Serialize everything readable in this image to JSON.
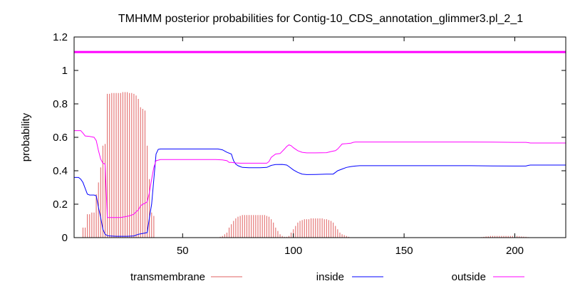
{
  "chart_data": {
    "type": "line",
    "title": "TMHMM posterior probabilities for Contig-10_CDS_annotation_glimmer3.pl_2_1",
    "xlabel": "",
    "ylabel": "probability",
    "xlim": [
      1,
      223
    ],
    "ylim": [
      0,
      1.2
    ],
    "xticks": [
      50,
      100,
      150,
      200
    ],
    "yticks": [
      0,
      0.2,
      0.4,
      0.6,
      0.8,
      1,
      1.2
    ],
    "grid": false,
    "legend_position": "bottom",
    "reference_line": {
      "y": 1.11,
      "color": "#ff00ff"
    },
    "series": [
      {
        "name": "transmembrane",
        "style": "impulses",
        "color": "#e06060",
        "points": [
          [
            1,
            0
          ],
          [
            2,
            0
          ],
          [
            3,
            0
          ],
          [
            4,
            0
          ],
          [
            5,
            0.06
          ],
          [
            6,
            0.06
          ],
          [
            7,
            0.14
          ],
          [
            8,
            0.14
          ],
          [
            9,
            0.15
          ],
          [
            10,
            0.15
          ],
          [
            11,
            0.26
          ],
          [
            12,
            0.33
          ],
          [
            13,
            0.42
          ],
          [
            14,
            0.55
          ],
          [
            15,
            0.56
          ],
          [
            16,
            0.86
          ],
          [
            17,
            0.86
          ],
          [
            18,
            0.865
          ],
          [
            19,
            0.865
          ],
          [
            20,
            0.865
          ],
          [
            21,
            0.865
          ],
          [
            22,
            0.865
          ],
          [
            23,
            0.87
          ],
          [
            24,
            0.87
          ],
          [
            25,
            0.87
          ],
          [
            26,
            0.865
          ],
          [
            27,
            0.865
          ],
          [
            28,
            0.86
          ],
          [
            29,
            0.85
          ],
          [
            30,
            0.83
          ],
          [
            31,
            0.78
          ],
          [
            32,
            0.77
          ],
          [
            33,
            0.76
          ],
          [
            34,
            0.55
          ],
          [
            35,
            0.35
          ],
          [
            36,
            0.15
          ],
          [
            37,
            0.13
          ],
          [
            38,
            0
          ],
          [
            66,
            0
          ],
          [
            67,
            0.005
          ],
          [
            68,
            0.01
          ],
          [
            69,
            0.02
          ],
          [
            70,
            0.03
          ],
          [
            71,
            0.06
          ],
          [
            72,
            0.08
          ],
          [
            73,
            0.1
          ],
          [
            74,
            0.115
          ],
          [
            75,
            0.125
          ],
          [
            76,
            0.13
          ],
          [
            77,
            0.135
          ],
          [
            78,
            0.135
          ],
          [
            79,
            0.135
          ],
          [
            80,
            0.135
          ],
          [
            81,
            0.135
          ],
          [
            82,
            0.135
          ],
          [
            83,
            0.135
          ],
          [
            84,
            0.135
          ],
          [
            85,
            0.135
          ],
          [
            86,
            0.135
          ],
          [
            87,
            0.135
          ],
          [
            88,
            0.13
          ],
          [
            89,
            0.125
          ],
          [
            90,
            0.11
          ],
          [
            91,
            0.09
          ],
          [
            92,
            0.06
          ],
          [
            93,
            0.04
          ],
          [
            94,
            0.02
          ],
          [
            95,
            0.01
          ],
          [
            96,
            0.005
          ],
          [
            97,
            0.005
          ],
          [
            98,
            0.01
          ],
          [
            99,
            0.03
          ],
          [
            100,
            0.05
          ],
          [
            101,
            0.07
          ],
          [
            102,
            0.09
          ],
          [
            103,
            0.1
          ],
          [
            104,
            0.105
          ],
          [
            105,
            0.11
          ],
          [
            106,
            0.11
          ],
          [
            107,
            0.11
          ],
          [
            108,
            0.115
          ],
          [
            109,
            0.115
          ],
          [
            110,
            0.115
          ],
          [
            111,
            0.115
          ],
          [
            112,
            0.115
          ],
          [
            113,
            0.115
          ],
          [
            114,
            0.11
          ],
          [
            115,
            0.11
          ],
          [
            116,
            0.105
          ],
          [
            117,
            0.1
          ],
          [
            118,
            0.09
          ],
          [
            119,
            0.07
          ],
          [
            120,
            0.05
          ],
          [
            121,
            0.03
          ],
          [
            122,
            0.02
          ],
          [
            123,
            0.015
          ],
          [
            124,
            0.01
          ],
          [
            125,
            0.005
          ],
          [
            126,
            0
          ],
          [
            184,
            0
          ],
          [
            185,
            0.003
          ],
          [
            186,
            0.005
          ],
          [
            187,
            0.007
          ],
          [
            188,
            0.008
          ],
          [
            189,
            0.01
          ],
          [
            190,
            0.01
          ],
          [
            191,
            0.01
          ],
          [
            192,
            0.01
          ],
          [
            193,
            0.01
          ],
          [
            194,
            0.01
          ],
          [
            195,
            0.01
          ],
          [
            196,
            0.01
          ],
          [
            197,
            0.01
          ],
          [
            198,
            0.01
          ],
          [
            199,
            0.01
          ],
          [
            200,
            0.01
          ],
          [
            201,
            0.01
          ],
          [
            202,
            0.008
          ],
          [
            203,
            0.007
          ],
          [
            204,
            0.006
          ],
          [
            205,
            0.005
          ],
          [
            206,
            0.003
          ],
          [
            207,
            0
          ]
        ]
      },
      {
        "name": "inside",
        "style": "line",
        "color": "#0000ff",
        "points": [
          [
            1,
            0.36
          ],
          [
            3,
            0.36
          ],
          [
            4,
            0.35
          ],
          [
            5,
            0.33
          ],
          [
            7,
            0.26
          ],
          [
            8,
            0.255
          ],
          [
            9,
            0.255
          ],
          [
            10,
            0.255
          ],
          [
            11,
            0.25
          ],
          [
            12,
            0.18
          ],
          [
            13,
            0.12
          ],
          [
            14,
            0.05
          ],
          [
            15,
            0.02
          ],
          [
            16,
            0.012
          ],
          [
            17,
            0.01
          ],
          [
            20,
            0.008
          ],
          [
            25,
            0.008
          ],
          [
            28,
            0.01
          ],
          [
            30,
            0.02
          ],
          [
            32,
            0.025
          ],
          [
            34,
            0.03
          ],
          [
            35,
            0.12
          ],
          [
            36,
            0.2
          ],
          [
            37,
            0.35
          ],
          [
            38,
            0.5
          ],
          [
            39,
            0.528
          ],
          [
            40,
            0.53
          ],
          [
            50,
            0.53
          ],
          [
            60,
            0.53
          ],
          [
            66,
            0.53
          ],
          [
            68,
            0.525
          ],
          [
            70,
            0.51
          ],
          [
            72,
            0.5
          ],
          [
            73,
            0.46
          ],
          [
            74,
            0.44
          ],
          [
            75,
            0.43
          ],
          [
            76,
            0.425
          ],
          [
            77,
            0.42
          ],
          [
            80,
            0.418
          ],
          [
            85,
            0.418
          ],
          [
            88,
            0.42
          ],
          [
            90,
            0.432
          ],
          [
            92,
            0.437
          ],
          [
            95,
            0.438
          ],
          [
            97,
            0.434
          ],
          [
            98,
            0.425
          ],
          [
            100,
            0.405
          ],
          [
            102,
            0.39
          ],
          [
            104,
            0.38
          ],
          [
            106,
            0.377
          ],
          [
            110,
            0.378
          ],
          [
            115,
            0.38
          ],
          [
            118,
            0.38
          ],
          [
            119,
            0.39
          ],
          [
            120,
            0.4
          ],
          [
            122,
            0.41
          ],
          [
            124,
            0.42
          ],
          [
            126,
            0.425
          ],
          [
            128,
            0.428
          ],
          [
            130,
            0.43
          ],
          [
            140,
            0.43
          ],
          [
            150,
            0.43
          ],
          [
            160,
            0.43
          ],
          [
            170,
            0.43
          ],
          [
            180,
            0.43
          ],
          [
            190,
            0.429
          ],
          [
            200,
            0.428
          ],
          [
            205,
            0.428
          ],
          [
            206,
            0.432
          ],
          [
            207,
            0.434
          ],
          [
            215,
            0.434
          ],
          [
            223,
            0.434
          ]
        ]
      },
      {
        "name": "outside",
        "style": "line",
        "color": "#ff00ff",
        "points": [
          [
            1,
            0.64
          ],
          [
            3,
            0.64
          ],
          [
            4,
            0.64
          ],
          [
            5,
            0.625
          ],
          [
            6,
            0.608
          ],
          [
            8,
            0.605
          ],
          [
            10,
            0.6
          ],
          [
            11,
            0.58
          ],
          [
            12,
            0.52
          ],
          [
            13,
            0.47
          ],
          [
            14,
            0.445
          ],
          [
            15,
            0.44
          ],
          [
            16,
            0.12
          ],
          [
            18,
            0.12
          ],
          [
            20,
            0.12
          ],
          [
            22,
            0.12
          ],
          [
            24,
            0.125
          ],
          [
            26,
            0.13
          ],
          [
            28,
            0.14
          ],
          [
            29,
            0.155
          ],
          [
            30,
            0.165
          ],
          [
            31,
            0.19
          ],
          [
            32,
            0.2
          ],
          [
            33,
            0.205
          ],
          [
            34,
            0.215
          ],
          [
            35,
            0.27
          ],
          [
            36,
            0.35
          ],
          [
            37,
            0.42
          ],
          [
            38,
            0.46
          ],
          [
            40,
            0.467
          ],
          [
            50,
            0.467
          ],
          [
            60,
            0.467
          ],
          [
            65,
            0.467
          ],
          [
            68,
            0.465
          ],
          [
            70,
            0.46
          ],
          [
            71,
            0.45
          ],
          [
            72,
            0.45
          ],
          [
            74,
            0.447
          ],
          [
            76,
            0.445
          ],
          [
            80,
            0.445
          ],
          [
            85,
            0.445
          ],
          [
            88,
            0.445
          ],
          [
            89,
            0.455
          ],
          [
            90,
            0.48
          ],
          [
            92,
            0.5
          ],
          [
            94,
            0.503
          ],
          [
            96,
            0.53
          ],
          [
            97,
            0.545
          ],
          [
            98,
            0.555
          ],
          [
            99,
            0.55
          ],
          [
            100,
            0.538
          ],
          [
            102,
            0.52
          ],
          [
            104,
            0.51
          ],
          [
            106,
            0.507
          ],
          [
            110,
            0.507
          ],
          [
            115,
            0.508
          ],
          [
            117,
            0.515
          ],
          [
            119,
            0.52
          ],
          [
            120,
            0.53
          ],
          [
            121,
            0.545
          ],
          [
            122,
            0.56
          ],
          [
            124,
            0.562
          ],
          [
            126,
            0.565
          ],
          [
            127,
            0.57
          ],
          [
            128,
            0.572
          ],
          [
            140,
            0.572
          ],
          [
            150,
            0.572
          ],
          [
            160,
            0.572
          ],
          [
            170,
            0.572
          ],
          [
            180,
            0.572
          ],
          [
            190,
            0.571
          ],
          [
            200,
            0.57
          ],
          [
            205,
            0.57
          ],
          [
            206,
            0.568
          ],
          [
            207,
            0.566
          ],
          [
            215,
            0.566
          ],
          [
            223,
            0.566
          ]
        ]
      }
    ]
  }
}
